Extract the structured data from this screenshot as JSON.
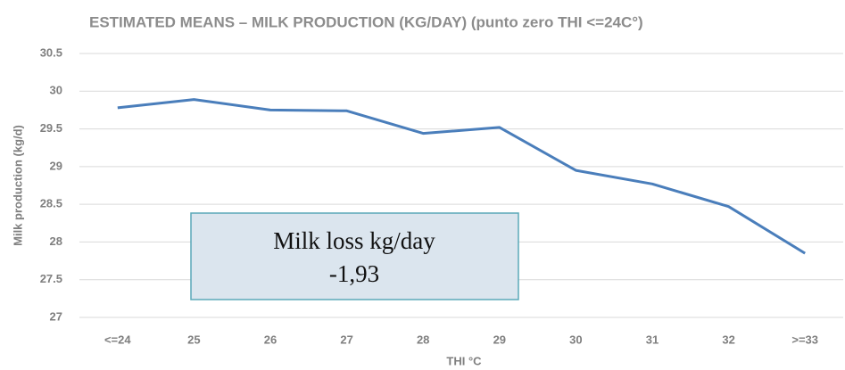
{
  "chart_data": {
    "type": "line",
    "title": "ESTIMATED MEANS – MILK PRODUCTION (KG/DAY) (punto zero THI <=24C°)",
    "x_label": "THI  °C",
    "y_label": "Milk production (kg/d)",
    "categories": [
      "<=24",
      "25",
      "26",
      "27",
      "28",
      "29",
      "30",
      "31",
      "32",
      ">=33"
    ],
    "series": [
      {
        "name": "Milk production",
        "color": "#4a7ebb",
        "values": [
          29.78,
          29.89,
          29.75,
          29.74,
          29.44,
          29.52,
          28.95,
          28.77,
          28.47,
          27.85
        ]
      }
    ],
    "ylim": [
      27,
      30.5
    ],
    "yticks": [
      27,
      27.5,
      28,
      28.5,
      29,
      29.5,
      30,
      30.5
    ],
    "grid": true,
    "annotations": [
      "Milk loss kg/day",
      "-1,93"
    ]
  }
}
